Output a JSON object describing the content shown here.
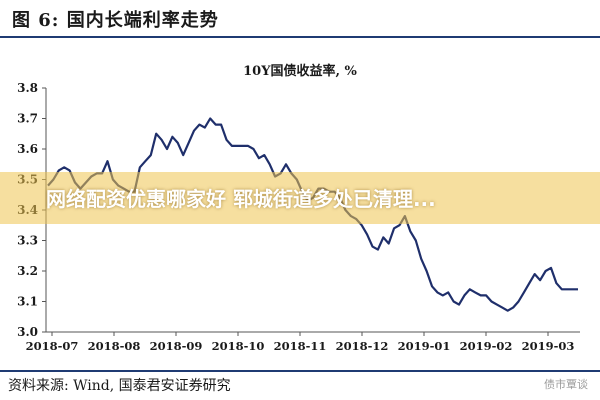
{
  "figure": {
    "title": "图 6:  国内长端利率走势",
    "source": "资料来源:  Wind,  国泰君安证券研究",
    "watermark": "债市覃谈",
    "overlay_text": "网络配资优惠哪家好 郓城街道多处已清理..."
  },
  "colors": {
    "line": "#1f2f6b",
    "rule": "#1f3b73",
    "overlay": "#eec450"
  },
  "chart_data": {
    "type": "line",
    "title": "10Y国债收益率, %",
    "xlabel": "",
    "ylabel": "",
    "ylim": [
      3.0,
      3.8
    ],
    "yticks": [
      "3.0",
      "3.1",
      "3.2",
      "3.3",
      "3.4",
      "3.5",
      "3.6",
      "3.7",
      "3.8"
    ],
    "xticks": [
      "2018-07",
      "2018-08",
      "2018-09",
      "2018-10",
      "2018-11",
      "2018-12",
      "2019-01",
      "2019-02",
      "2019-03"
    ],
    "grid": false,
    "series": [
      {
        "values": [
          3.48,
          3.5,
          3.53,
          3.54,
          3.53,
          3.49,
          3.47,
          3.49,
          3.51,
          3.52,
          3.52,
          3.56,
          3.5,
          3.48,
          3.47,
          3.46,
          3.46,
          3.54,
          3.56,
          3.58,
          3.65,
          3.63,
          3.6,
          3.64,
          3.62,
          3.58,
          3.62,
          3.66,
          3.68,
          3.67,
          3.7,
          3.68,
          3.68,
          3.63,
          3.61,
          3.61,
          3.61,
          3.61,
          3.6,
          3.57,
          3.58,
          3.55,
          3.51,
          3.52,
          3.55,
          3.52,
          3.5,
          3.46,
          3.43,
          3.44,
          3.47,
          3.47,
          3.46,
          3.46,
          3.44,
          3.4,
          3.38,
          3.37,
          3.35,
          3.32,
          3.28,
          3.27,
          3.31,
          3.29,
          3.34,
          3.35,
          3.38,
          3.33,
          3.3,
          3.24,
          3.2,
          3.15,
          3.13,
          3.12,
          3.13,
          3.1,
          3.09,
          3.12,
          3.14,
          3.13,
          3.12,
          3.12,
          3.1,
          3.09,
          3.08,
          3.07,
          3.08,
          3.1,
          3.13,
          3.16,
          3.19,
          3.17,
          3.2,
          3.21,
          3.16,
          3.14,
          3.14,
          3.14,
          3.14
        ]
      }
    ]
  }
}
